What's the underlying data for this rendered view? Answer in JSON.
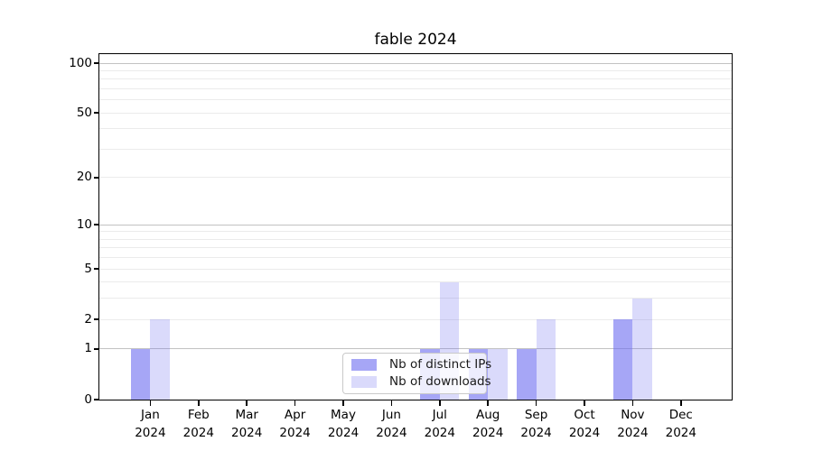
{
  "title": "fable 2024",
  "colors": {
    "axis": "#000000",
    "grid_major": "#c2c2c2",
    "grid_minor": "#ebebeb",
    "series_ips": "rgba(106,106,240,0.6)",
    "series_downloads": "rgba(106,106,240,0.25)"
  },
  "chart_data": {
    "type": "bar",
    "title": "fable 2024",
    "categories": [
      "Jan",
      "Feb",
      "Mar",
      "Apr",
      "May",
      "Jun",
      "Jul",
      "Aug",
      "Sep",
      "Oct",
      "Nov",
      "Dec"
    ],
    "year": "2024",
    "series": [
      {
        "name": "Nb of distinct IPs",
        "color": "rgba(106,106,240,0.6)",
        "values": [
          1,
          0,
          0,
          0,
          0,
          0,
          1,
          1,
          1,
          0,
          2,
          0
        ]
      },
      {
        "name": "Nb of downloads",
        "color": "rgba(106,106,240,0.25)",
        "values": [
          2,
          0,
          0,
          0,
          0,
          0,
          4,
          1,
          2,
          0,
          3,
          0
        ]
      }
    ],
    "y_axis": {
      "scale": "log1p",
      "ticks": [
        0,
        1,
        2,
        5,
        10,
        20,
        50,
        100
      ],
      "decade_ticks": [
        1,
        10,
        100
      ],
      "minor_gridlines": [
        3,
        4,
        6,
        7,
        8,
        9,
        30,
        40,
        60,
        70,
        80,
        90
      ],
      "ylim": [
        0,
        113
      ]
    },
    "xlabel": "",
    "ylabel": "",
    "grid": true,
    "legend": {
      "position": "lower center",
      "entries": [
        "Nb of distinct IPs",
        "Nb of downloads"
      ]
    }
  }
}
